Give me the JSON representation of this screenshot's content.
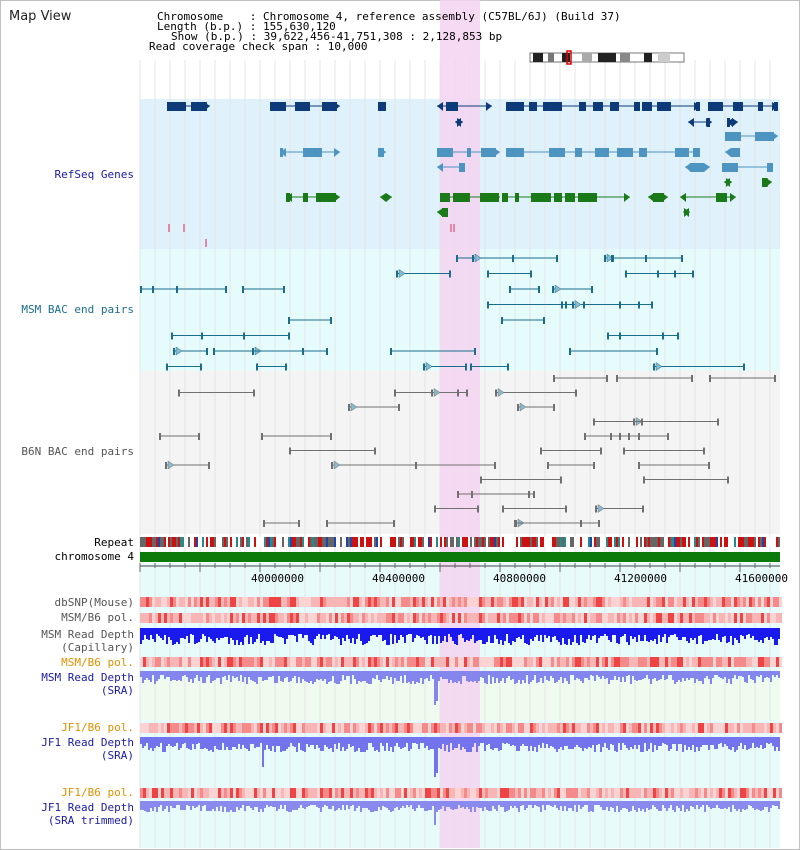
{
  "title": "Map View",
  "header": {
    "chromosome_line": "Chromosome    : Chromosome 4, reference assembly (C57BL/6J) (Build 37)",
    "length_line": "Length (b.p.) : 155,630,120",
    "show_line": "Show (b.p.) : 39,622,456-41,751,308 : 2,128,853 bp",
    "coverage_line": "Read coverage check span : 10,000"
  },
  "tracks": {
    "refseq_label": "RefSeq Genes",
    "msm_bac_label": "MSM BAC end pairs",
    "b6n_bac_label": "B6N BAC end pairs",
    "repeat_label": "Repeat",
    "chromosome_label": "chromosome 4",
    "dbsnp_label": "dbSNP(Mouse)",
    "msm_pol_label": "MSM/B6 pol.",
    "msm_depth_cap_label": "MSM Read Depth\n(Capillary)",
    "msm_pol2_label": "MSM/B6 pol.",
    "msm_depth_sra_label": "MSM Read Depth\n(SRA)",
    "jf1_pol_label": "JF1/B6 pol.",
    "jf1_depth_sra_label": "JF1 Read Depth\n(SRA)",
    "jf1_pol2_label": "JF1/B6 pol.",
    "jf1_depth_trim_label": "JF1 Read Depth\n(SRA trimmed)"
  },
  "axis": {
    "ticks": [
      "40000000",
      "40400000",
      "40800000",
      "41200000",
      "41600000"
    ]
  },
  "colors": {
    "refseq_bg": "#dff1fa",
    "bac_bg": "#e6fbfb",
    "highlight": "#f5d4f1",
    "refseq_dark": "#0d3a78",
    "refseq_mid": "#4d94c0",
    "refseq_green": "#1a7a1a",
    "msm_pair": "#1a6e8c",
    "b6n_pair": "#707070",
    "label_blue": "#1a1aa8",
    "label_teal": "#1a6e8c",
    "label_orange": "#e09000",
    "label_grey": "#555555"
  }
}
